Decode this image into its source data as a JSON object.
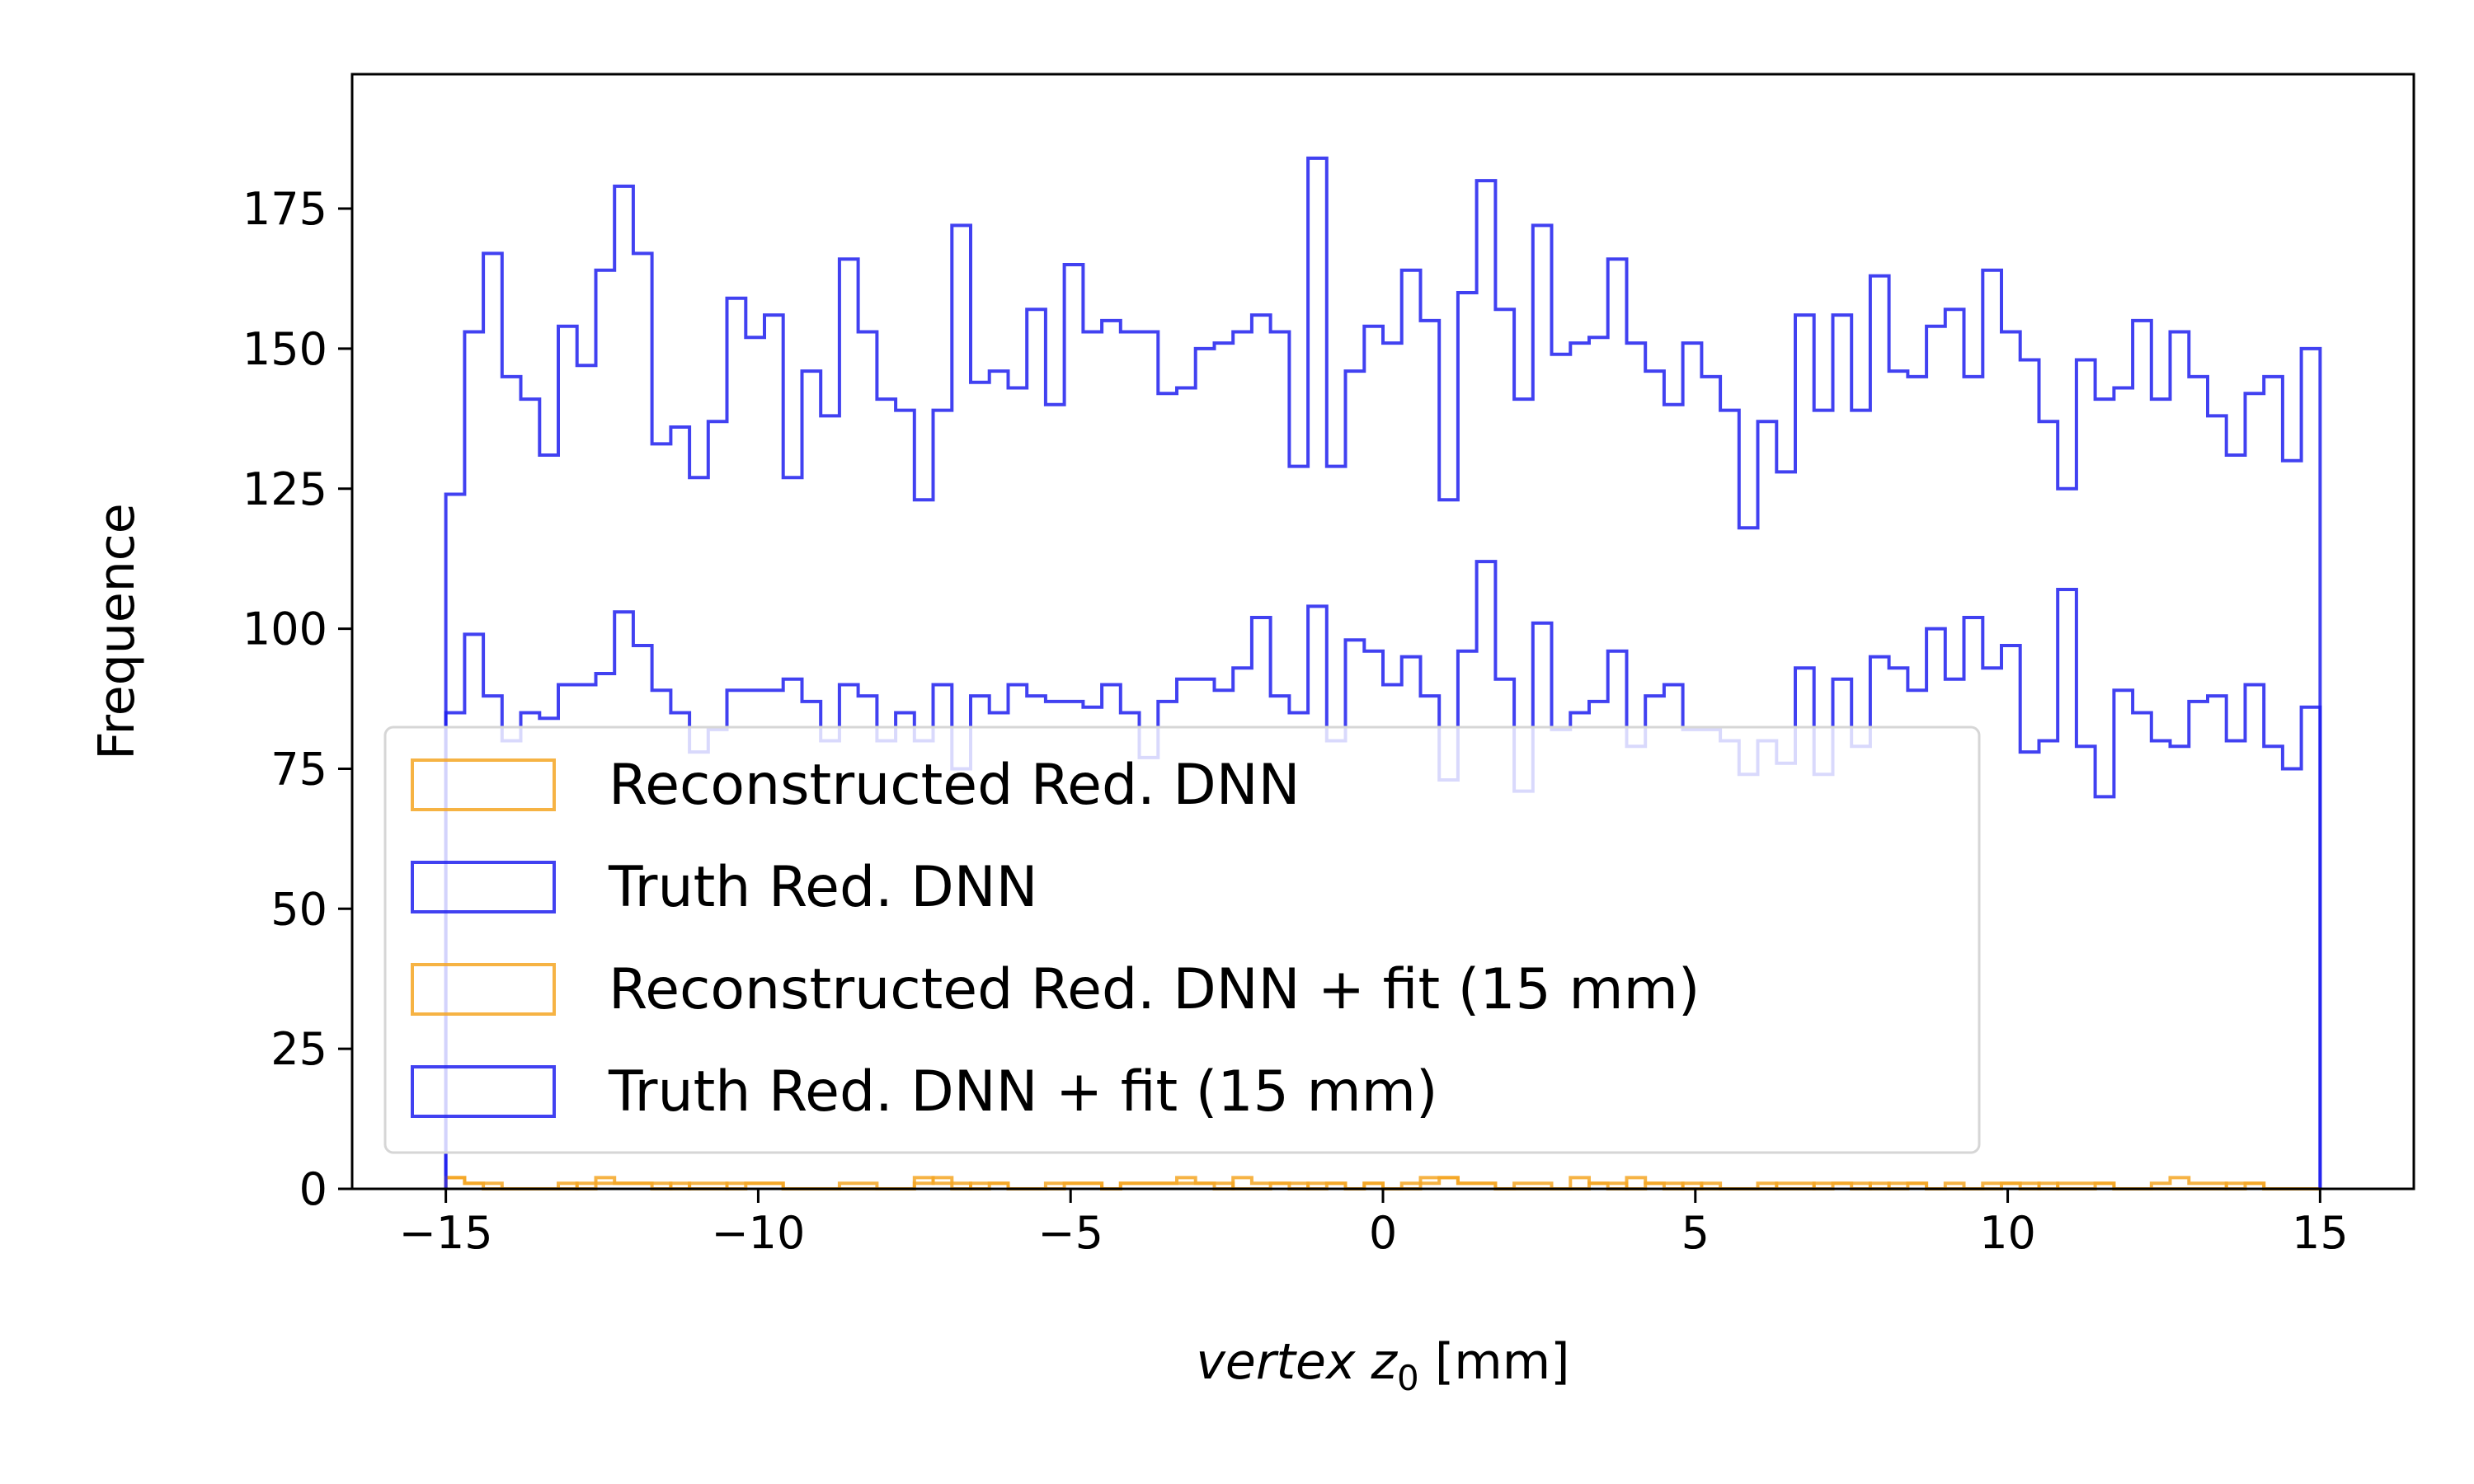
{
  "chart_data": {
    "type": "histogram",
    "xlabel": "vertex z",
    "xlabel_subscript": "0",
    "xlabel_unit": "[mm]",
    "ylabel": "Frequence",
    "xlim": [
      -16.5,
      16.5
    ],
    "ylim": [
      0,
      199
    ],
    "xticks": [
      -15,
      -10,
      -5,
      0,
      5,
      10,
      15
    ],
    "xtick_labels": [
      "−15",
      "−10",
      "−5",
      "0",
      "5",
      "10",
      "15"
    ],
    "yticks": [
      0,
      25,
      50,
      75,
      100,
      125,
      150,
      175
    ],
    "ytick_labels": [
      "0",
      "25",
      "50",
      "75",
      "100",
      "125",
      "150",
      "175"
    ],
    "grid": false,
    "legend_position": "lower-left",
    "bins": {
      "start": -15,
      "end": 15,
      "count": 100
    },
    "series": [
      {
        "name": "Reconstructed Red. DNN",
        "color": "#f5a623",
        "opacity": 0.85,
        "values": [
          2,
          1,
          1,
          0,
          0,
          0,
          1,
          0,
          2,
          1,
          1,
          1,
          0,
          1,
          1,
          0,
          1,
          1,
          0,
          0,
          0,
          0,
          0,
          0,
          0,
          2,
          1,
          0,
          1,
          1,
          0,
          0,
          0,
          1,
          1,
          0,
          1,
          1,
          1,
          1,
          1,
          0,
          2,
          1,
          1,
          0,
          1,
          1,
          0,
          1,
          0,
          1,
          2,
          2,
          1,
          1,
          0,
          0,
          0,
          0,
          2,
          1,
          1,
          0,
          1,
          1,
          0,
          1,
          0,
          0,
          1,
          0,
          0,
          1,
          1,
          1,
          0,
          1,
          1,
          0,
          0,
          0,
          0,
          1,
          1,
          0,
          1,
          1,
          1,
          0,
          0,
          0,
          0,
          0,
          0,
          1,
          1,
          0,
          0,
          0
        ]
      },
      {
        "name": "Truth Red. DNN",
        "color": "#2020ee",
        "opacity": 0.85,
        "values": [
          124,
          153,
          167,
          145,
          141,
          131,
          154,
          147,
          164,
          179,
          167,
          133,
          136,
          127,
          137,
          159,
          152,
          156,
          127,
          146,
          138,
          166,
          153,
          141,
          139,
          123,
          139,
          172,
          144,
          146,
          143,
          157,
          140,
          165,
          153,
          155,
          153,
          153,
          142,
          143,
          150,
          151,
          153,
          156,
          153,
          129,
          184,
          129,
          146,
          154,
          151,
          164,
          155,
          123,
          160,
          180,
          157,
          141,
          172,
          149,
          151,
          152,
          166,
          151,
          146,
          140,
          151,
          145,
          139,
          118,
          137,
          128,
          156,
          139,
          156,
          139,
          163,
          146,
          145,
          154,
          157,
          145,
          164,
          153,
          148,
          137,
          125,
          148,
          141,
          143,
          155,
          141,
          153,
          145,
          138,
          131,
          142,
          145,
          130,
          150
        ]
      },
      {
        "name": "Reconstructed Red. DNN + fit (15 mm)",
        "color": "#f5a623",
        "opacity": 0.85,
        "values": [
          2,
          1,
          0,
          0,
          0,
          0,
          0,
          1,
          1,
          1,
          1,
          0,
          1,
          0,
          0,
          1,
          1,
          1,
          0,
          0,
          0,
          1,
          1,
          0,
          0,
          1,
          2,
          1,
          0,
          1,
          0,
          0,
          1,
          1,
          1,
          0,
          1,
          1,
          1,
          2,
          1,
          1,
          0,
          0,
          1,
          1,
          0,
          1,
          0,
          1,
          0,
          0,
          1,
          2,
          1,
          1,
          0,
          1,
          1,
          0,
          0,
          1,
          0,
          2,
          1,
          0,
          1,
          0,
          0,
          0,
          0,
          1,
          1,
          0,
          1,
          0,
          1,
          0,
          1,
          0,
          1,
          0,
          1,
          1,
          0,
          1,
          0,
          0,
          1,
          0,
          0,
          1,
          2,
          1,
          1,
          0,
          1,
          0,
          0,
          0
        ]
      },
      {
        "name": "Truth Red. DNN + fit (15 mm)",
        "color": "#2020ee",
        "opacity": 0.85,
        "values": [
          85,
          99,
          88,
          80,
          85,
          84,
          90,
          90,
          92,
          103,
          97,
          89,
          85,
          78,
          82,
          89,
          89,
          89,
          91,
          87,
          80,
          90,
          88,
          80,
          85,
          80,
          90,
          75,
          88,
          85,
          90,
          88,
          87,
          87,
          86,
          90,
          85,
          77,
          87,
          91,
          91,
          89,
          93,
          102,
          88,
          85,
          104,
          80,
          98,
          96,
          90,
          95,
          88,
          73,
          96,
          112,
          91,
          71,
          101,
          82,
          85,
          87,
          96,
          79,
          88,
          90,
          82,
          82,
          80,
          74,
          80,
          76,
          93,
          74,
          91,
          79,
          95,
          93,
          89,
          100,
          91,
          102,
          93,
          97,
          78,
          80,
          107,
          79,
          70,
          89,
          85,
          80,
          79,
          87,
          88,
          80,
          90,
          79,
          75,
          86
        ]
      }
    ]
  },
  "legend": {
    "entries": [
      "Reconstructed Red. DNN",
      "Truth Red. DNN",
      "Reconstructed Red. DNN + fit (15 mm)",
      "Truth Red. DNN + fit (15 mm)"
    ]
  }
}
